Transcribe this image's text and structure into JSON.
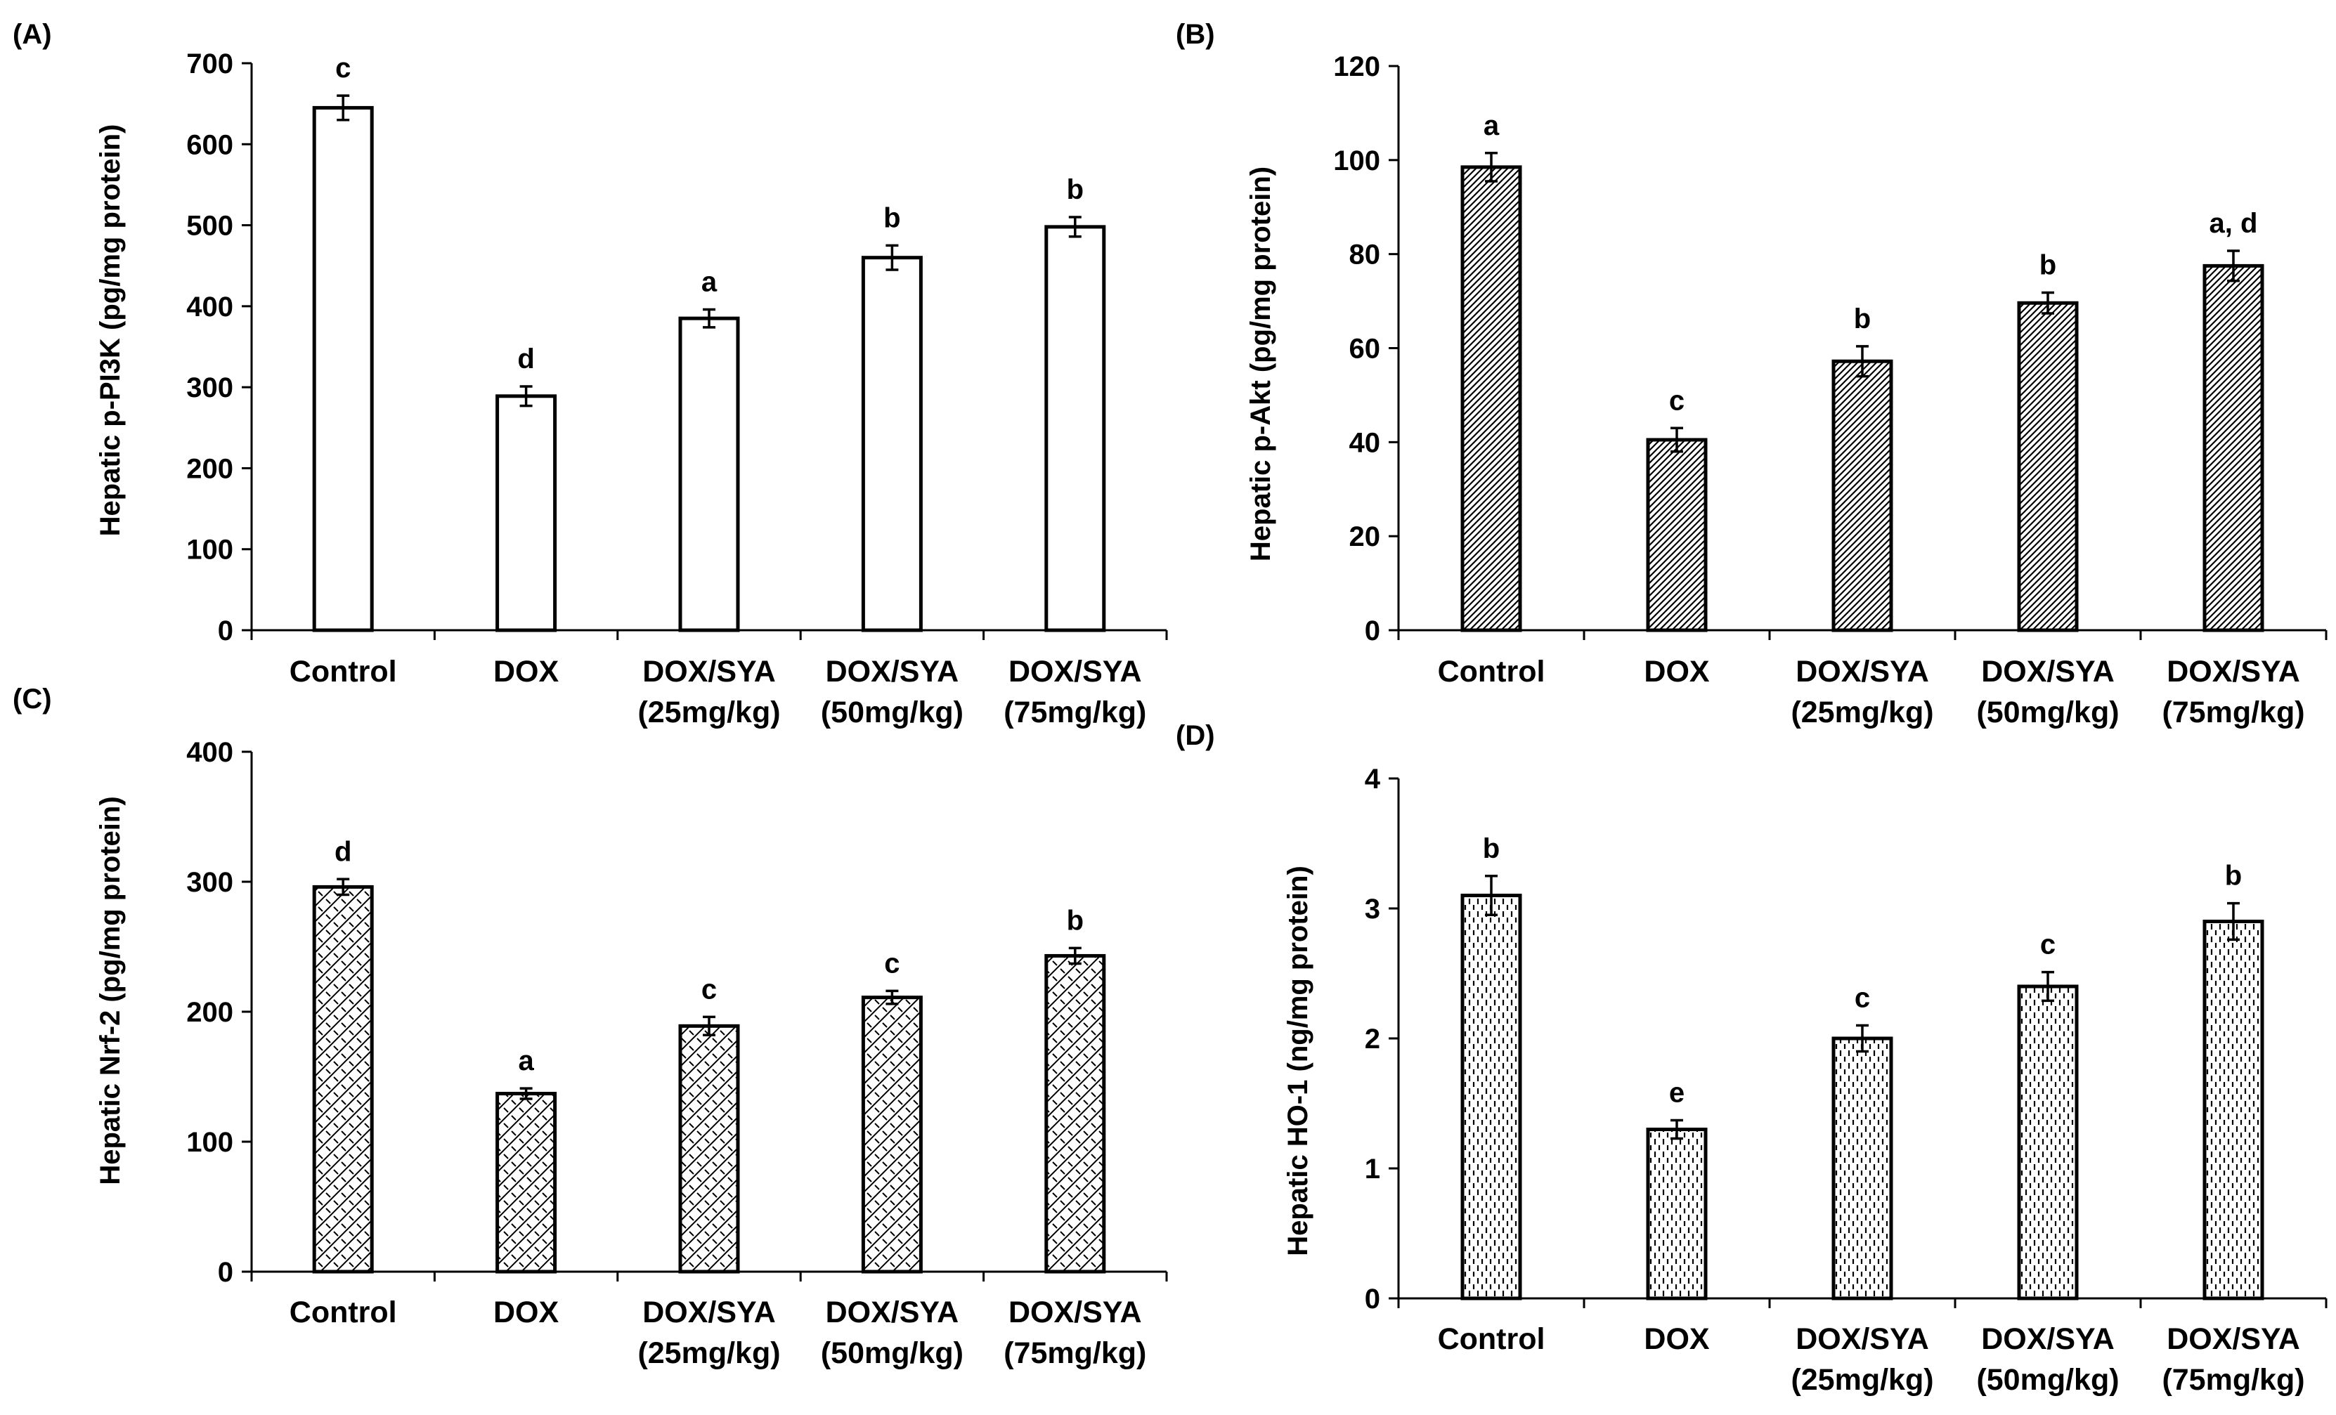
{
  "figure": {
    "background": "#ffffff",
    "stroke_color": "#000000"
  },
  "chart_data": [
    {
      "panel_label": "(A)",
      "type": "bar",
      "ylabel": "Hepatic p-PI3K (pg/mg protein)",
      "xlabel": "",
      "ylim": [
        0,
        700
      ],
      "yticks": [
        0,
        100,
        200,
        300,
        400,
        500,
        600,
        700
      ],
      "categories": [
        [
          "Control"
        ],
        [
          "DOX"
        ],
        [
          "DOX/SYA",
          "(25mg/kg)"
        ],
        [
          "DOX/SYA",
          "(50mg/kg)"
        ],
        [
          "DOX/SYA",
          "(75mg/kg)"
        ]
      ],
      "values": [
        645,
        289,
        385,
        460,
        498
      ],
      "errors": [
        15,
        12,
        11,
        15,
        12
      ],
      "annotations": [
        "c",
        "d",
        "a",
        "b",
        "b"
      ],
      "fill_pattern": "none"
    },
    {
      "panel_label": "(B)",
      "type": "bar",
      "ylabel": "Hepatic  p-Akt (pg/mg protein)",
      "xlabel": "",
      "ylim": [
        0,
        120
      ],
      "yticks": [
        0,
        20,
        40,
        60,
        80,
        100,
        120
      ],
      "categories": [
        [
          "Control"
        ],
        [
          "DOX"
        ],
        [
          "DOX/SYA",
          "(25mg/kg)"
        ],
        [
          "DOX/SYA",
          "(50mg/kg)"
        ],
        [
          "DOX/SYA",
          "(75mg/kg)"
        ]
      ],
      "values": [
        98.5,
        40.5,
        57.2,
        69.6,
        77.5
      ],
      "errors": [
        3,
        2.5,
        3.2,
        2.2,
        3.2
      ],
      "annotations": [
        "a",
        "c",
        "b",
        "b",
        "a, d"
      ],
      "fill_pattern": "diagonal-lines"
    },
    {
      "panel_label": "(C)",
      "type": "bar",
      "ylabel": "Hepatic  Nrf-2 (pg/mg protein)",
      "xlabel": "",
      "ylim": [
        0,
        400
      ],
      "yticks": [
        0,
        100,
        200,
        300,
        400
      ],
      "categories": [
        [
          "Control"
        ],
        [
          "DOX"
        ],
        [
          "DOX/SYA",
          "(25mg/kg)"
        ],
        [
          "DOX/SYA",
          "(50mg/kg)"
        ],
        [
          "DOX/SYA",
          "(75mg/kg)"
        ]
      ],
      "values": [
        296,
        137,
        189,
        211,
        243
      ],
      "errors": [
        6,
        4,
        7,
        5,
        6
      ],
      "annotations": [
        "d",
        "a",
        "c",
        "c",
        "b"
      ],
      "fill_pattern": "zigzag"
    },
    {
      "panel_label": "(D)",
      "type": "bar",
      "ylabel": "Hepatic  HO-1 (ng/mg protein)",
      "xlabel": "",
      "ylim": [
        0,
        4
      ],
      "yticks": [
        0,
        1,
        2,
        3,
        4
      ],
      "categories": [
        [
          "Control"
        ],
        [
          "DOX"
        ],
        [
          "DOX/SYA",
          "(25mg/kg)"
        ],
        [
          "DOX/SYA",
          "(50mg/kg)"
        ],
        [
          "DOX/SYA",
          "(75mg/kg)"
        ]
      ],
      "values": [
        3.1,
        1.3,
        2.0,
        2.4,
        2.9
      ],
      "errors": [
        0.15,
        0.07,
        0.1,
        0.11,
        0.14
      ],
      "annotations": [
        "b",
        "e",
        "c",
        "c",
        "b"
      ],
      "fill_pattern": "dashed-vertical"
    }
  ]
}
